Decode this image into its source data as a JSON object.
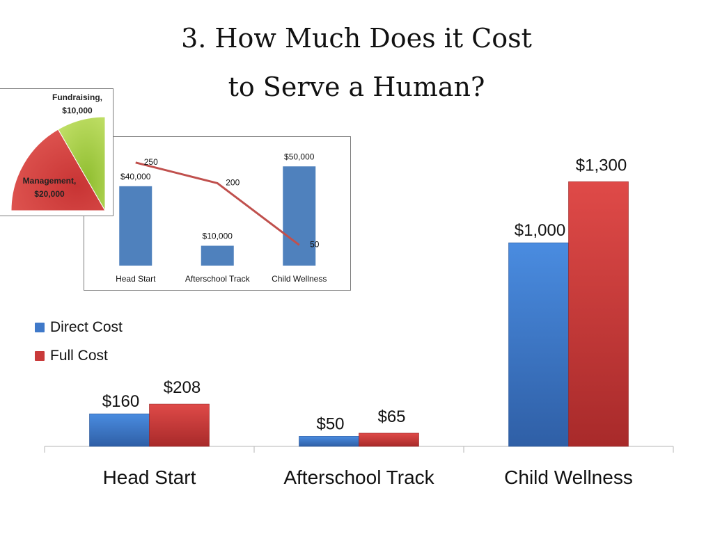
{
  "title": {
    "line1": "3. How Much Does it Cost",
    "line2": "to Serve a Human?"
  },
  "colors": {
    "direct": "#3f79c9",
    "full": "#c93a3a",
    "management": "#d2403f",
    "fundraising": "#a4cf44",
    "inset_bar": "#4f81bd",
    "inset_line": "#c0504d"
  },
  "chart_data": [
    {
      "type": "bar",
      "categories": [
        "Head Start",
        "Afterschool Track",
        "Child Wellness"
      ],
      "series": [
        {
          "name": "Direct Cost",
          "values": [
            160,
            50,
            1000
          ],
          "labels": [
            "$160",
            "$50",
            "$1,000"
          ]
        },
        {
          "name": "Full Cost",
          "values": [
            208,
            65,
            1300
          ],
          "labels": [
            "$208",
            "$65",
            "$1,300"
          ]
        }
      ],
      "legend": "left",
      "grid": false
    },
    {
      "type": "bar",
      "categories": [
        "Head Start",
        "Afterschool Track",
        "Child Wellness"
      ],
      "values": [
        40000,
        10000,
        50000
      ],
      "labels": [
        "$40,000",
        "$10,000",
        "$50,000"
      ],
      "line": {
        "values": [
          250,
          200,
          50
        ],
        "labels": [
          "250",
          "200",
          "50"
        ]
      }
    },
    {
      "type": "pie",
      "slices": [
        {
          "name": "Management",
          "value": 20000,
          "label_line1": "Management,",
          "label_line2": "$20,000"
        },
        {
          "name": "Fundraising",
          "value": 10000,
          "label_line1": "Fundraising,",
          "label_line2": "$10,000"
        }
      ]
    }
  ]
}
